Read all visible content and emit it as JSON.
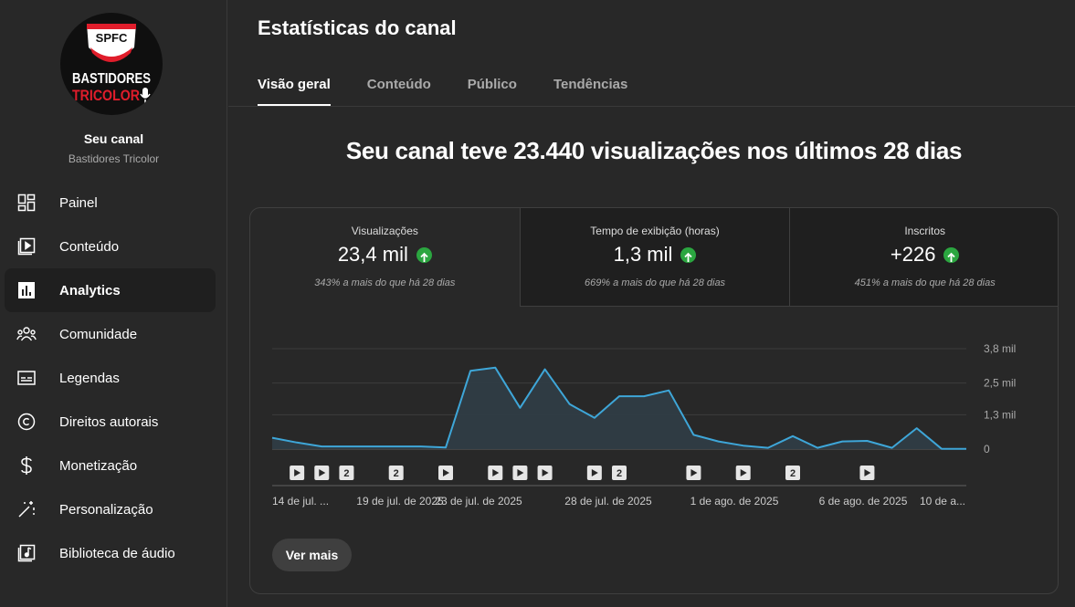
{
  "sidebar": {
    "logo": {
      "top_text": "SPFC",
      "line1": "BASTIDORES",
      "line2": "TRICOLOR"
    },
    "channel_title": "Seu canal",
    "channel_name": "Bastidores Tricolor",
    "items": [
      {
        "label": "Painel",
        "icon": "dashboard-icon",
        "active": false
      },
      {
        "label": "Conteúdo",
        "icon": "content-icon",
        "active": false
      },
      {
        "label": "Analytics",
        "icon": "analytics-icon",
        "active": true
      },
      {
        "label": "Comunidade",
        "icon": "community-icon",
        "active": false
      },
      {
        "label": "Legendas",
        "icon": "subtitles-icon",
        "active": false
      },
      {
        "label": "Direitos autorais",
        "icon": "copyright-icon",
        "active": false
      },
      {
        "label": "Monetização",
        "icon": "dollar-icon",
        "active": false
      },
      {
        "label": "Personalização",
        "icon": "magic-wand-icon",
        "active": false
      },
      {
        "label": "Biblioteca de áudio",
        "icon": "audio-library-icon",
        "active": false
      }
    ]
  },
  "header": {
    "title": "Estatísticas do canal",
    "tabs": [
      {
        "label": "Visão geral",
        "active": true
      },
      {
        "label": "Conteúdo",
        "active": false
      },
      {
        "label": "Público",
        "active": false
      },
      {
        "label": "Tendências",
        "active": false
      }
    ]
  },
  "main": {
    "headline": "Seu canal teve 23.440 visualizações nos últimos 28 dias",
    "metrics": [
      {
        "label": "Visualizações",
        "value": "23,4 mil",
        "note": "343% a mais do que há 28 dias",
        "trend": "up"
      },
      {
        "label": "Tempo de exibição (horas)",
        "value": "1,3 mil",
        "note": "669% a mais do que há 28 dias",
        "trend": "up"
      },
      {
        "label": "Inscritos",
        "value": "+226",
        "note": "451% a mais do que há 28 dias",
        "trend": "up"
      }
    ],
    "see_more": "Ver mais"
  },
  "colors": {
    "line": "#3ea6d8",
    "up": "#2ba640",
    "bg": "#282828"
  },
  "chart_data": {
    "type": "area",
    "y_tick_labels": [
      "3,8 mil",
      "2,5 mil",
      "1,3 mil",
      "0"
    ],
    "ylim": [
      0,
      3800
    ],
    "x_tick_labels": [
      "14 de jul. ...",
      "19 de jul. de 2025",
      "23 de jul. de 2025",
      "28 de jul. de 2025",
      "1 de ago. de 2025",
      "6 de ago. de 2025",
      "10 de a..."
    ],
    "series": [
      {
        "values": [
          430,
          250,
          100,
          100,
          100,
          100,
          100,
          60,
          2960,
          3080,
          1560,
          3020,
          1700,
          1180,
          2000,
          2000,
          2220,
          540,
          290,
          130,
          50,
          490,
          50,
          290,
          310,
          50,
          790,
          10,
          10
        ]
      }
    ],
    "markers": [
      {
        "index": 1,
        "type": "video"
      },
      {
        "index": 2,
        "type": "video"
      },
      {
        "index": 3,
        "type": "count",
        "count": "2"
      },
      {
        "index": 5,
        "type": "count",
        "count": "2"
      },
      {
        "index": 7,
        "type": "video"
      },
      {
        "index": 9,
        "type": "video"
      },
      {
        "index": 10,
        "type": "video"
      },
      {
        "index": 11,
        "type": "video"
      },
      {
        "index": 13,
        "type": "video"
      },
      {
        "index": 14,
        "type": "count",
        "count": "2"
      },
      {
        "index": 17,
        "type": "video"
      },
      {
        "index": 19,
        "type": "video"
      },
      {
        "index": 21,
        "type": "count",
        "count": "2"
      },
      {
        "index": 24,
        "type": "video"
      }
    ]
  }
}
